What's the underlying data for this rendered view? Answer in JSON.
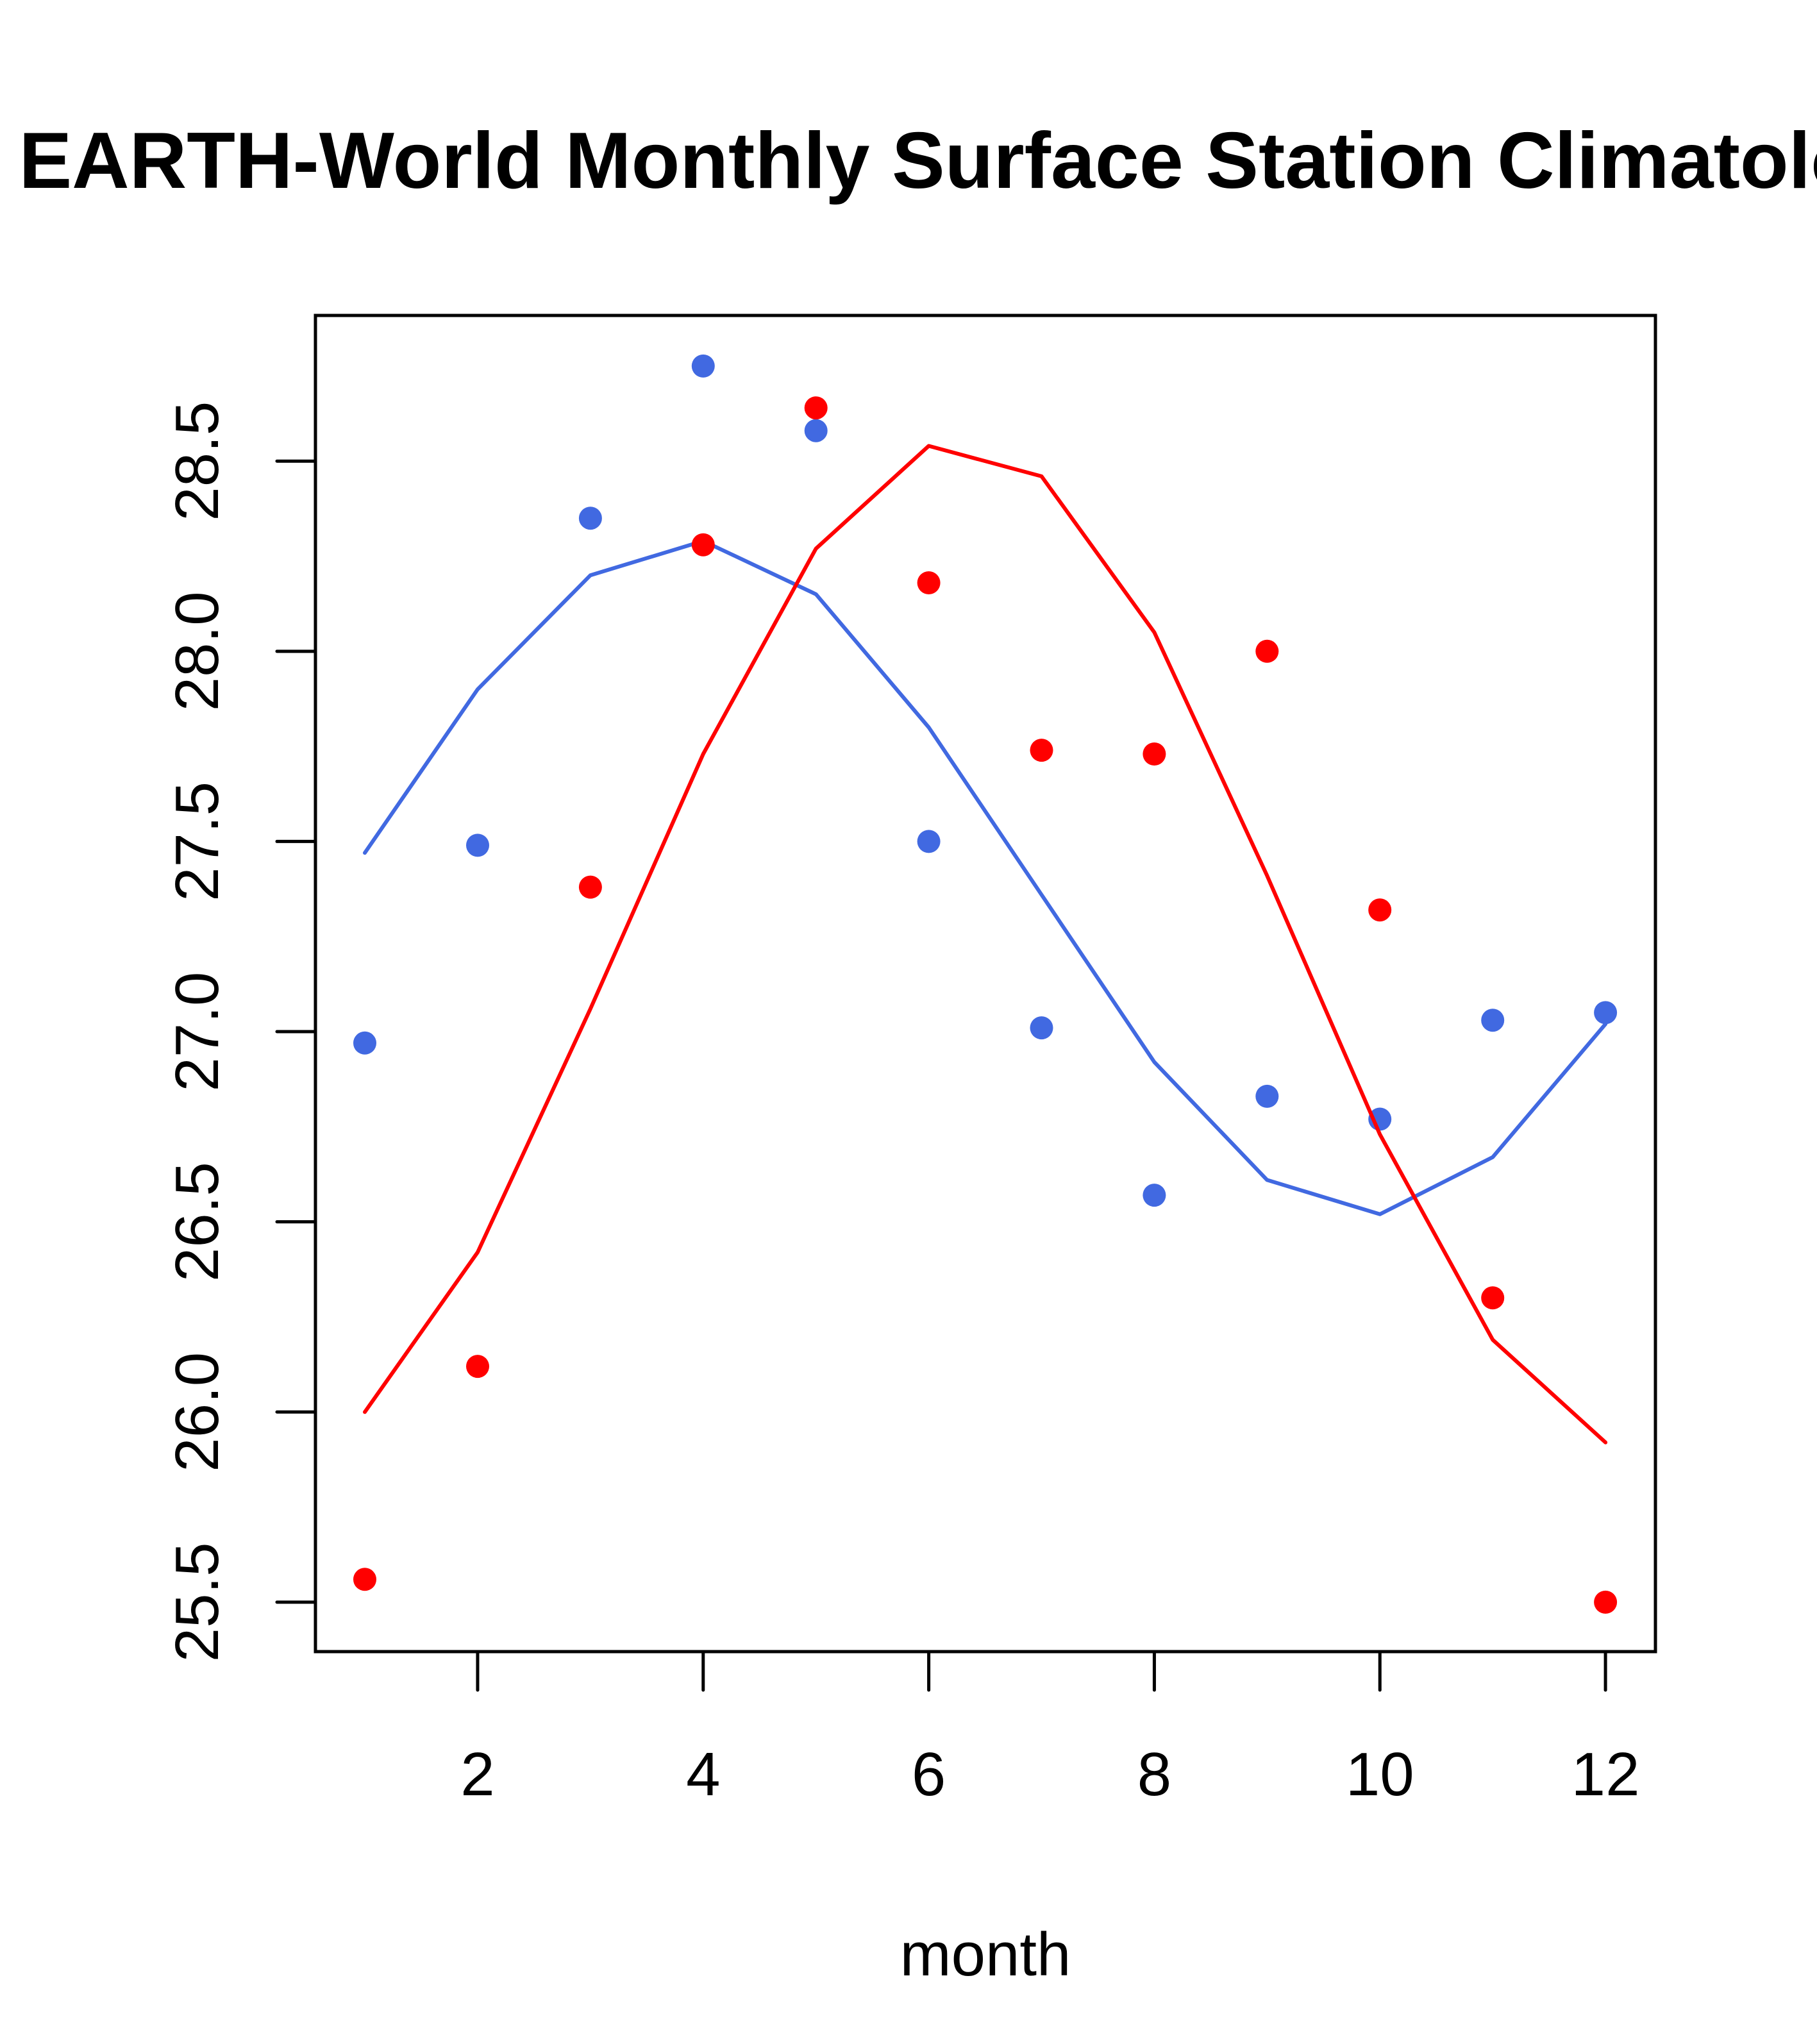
{
  "chart_data": {
    "type": "scatter",
    "title": "EARTH-World Monthly Surface Station Climatology",
    "xlabel": "month",
    "ylabel": "",
    "xlim": [
      0.562,
      12.443
    ],
    "ylim": [
      25.37,
      28.883
    ],
    "x_ticks": [
      2,
      4,
      6,
      8,
      10,
      12
    ],
    "x_tick_labels": [
      "2",
      "4",
      "6",
      "8",
      "10",
      "12"
    ],
    "y_ticks": [
      25.5,
      26.0,
      26.5,
      27.0,
      27.5,
      28.0,
      28.5
    ],
    "y_tick_labels": [
      "25.5",
      "26.0",
      "26.5",
      "27.0",
      "27.5",
      "28.0",
      "28.5"
    ],
    "grid": false,
    "legend": null,
    "x": [
      1,
      2,
      3,
      4,
      5,
      6,
      7,
      8,
      9,
      10,
      11,
      12
    ],
    "series": [
      {
        "name": "blue points",
        "kind": "points",
        "color": "#4169E1",
        "values": [
          26.97,
          27.49,
          28.35,
          28.75,
          28.58,
          27.5,
          27.01,
          26.57,
          26.83,
          26.77,
          27.03,
          27.05
        ]
      },
      {
        "name": "blue line",
        "kind": "line",
        "color": "#4169E1",
        "values": [
          27.47,
          27.9,
          28.2,
          28.29,
          28.15,
          27.8,
          27.36,
          26.92,
          26.61,
          26.52,
          26.67,
          27.02
        ]
      },
      {
        "name": "red points",
        "kind": "points",
        "color": "#FF0000",
        "values": [
          25.56,
          26.12,
          27.38,
          28.28,
          28.64,
          28.18,
          27.74,
          27.73,
          28.0,
          27.32,
          26.3,
          25.5
        ]
      },
      {
        "name": "red line",
        "kind": "line",
        "color": "#FF0000",
        "values": [
          26.0,
          26.42,
          27.06,
          27.73,
          28.27,
          28.54,
          28.46,
          28.05,
          27.41,
          26.73,
          26.19,
          25.92
        ]
      }
    ]
  }
}
